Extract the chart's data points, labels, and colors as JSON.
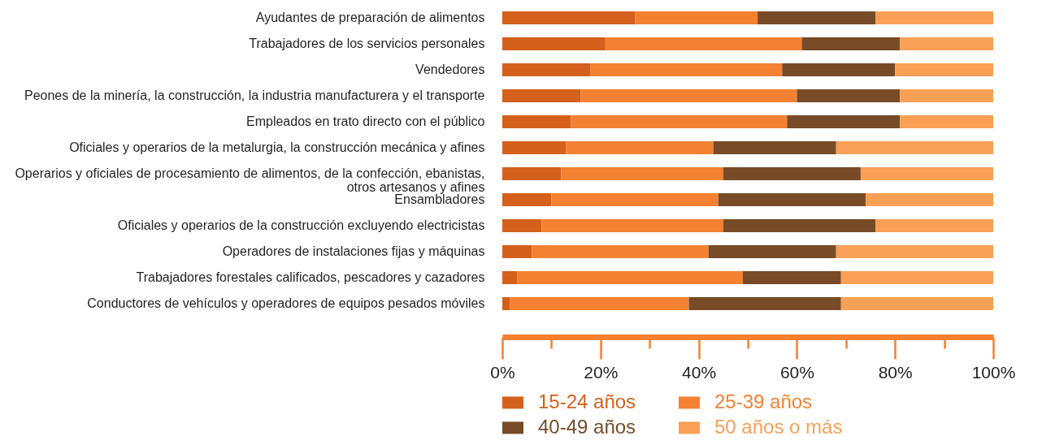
{
  "chart_data": {
    "type": "bar",
    "orientation": "horizontal",
    "stacked": true,
    "categories": [
      "Ayudantes de preparación de alimentos",
      "Trabajadores de los servicios personales",
      "Vendedores",
      "Peones de la minería, la construcción, la industria manufacturera y el transporte",
      "Empleados en trato directo con el público",
      "Oficiales y operarios de la metalurgia, la construcción mecánica y afines",
      "Operarios y oficiales de procesamiento de alimentos, de la confección, ebanistas, otros artesanos y afines",
      "Ensambladores",
      "Oficiales y operarios de la construcción excluyendo electricistas",
      "Operadores de instalaciones fijas y máquinas",
      "Trabajadores forestales calificados, pescadores y cazadores",
      "Conductores de vehículos y operadores de equipos pesados móviles"
    ],
    "series": [
      {
        "name": "15-24 años",
        "color": "#d4601b",
        "values": [
          27,
          21,
          18,
          16,
          14,
          13,
          12,
          10,
          8,
          6,
          3,
          1.5
        ]
      },
      {
        "name": "25-39 años",
        "color": "#f48132",
        "values": [
          25,
          40,
          39,
          44,
          44,
          30,
          33,
          34,
          37,
          36,
          46,
          36.5
        ]
      },
      {
        "name": "40-49 años",
        "color": "#774b27",
        "values": [
          24,
          20,
          23,
          21,
          23,
          25,
          28,
          30,
          31,
          26,
          20,
          31
        ]
      },
      {
        "name": "50 años o más",
        "color": "#f8a055",
        "values": [
          24,
          19,
          20,
          19,
          19,
          32,
          27,
          26,
          24,
          32,
          31,
          31
        ]
      }
    ],
    "xlim": [
      0,
      100
    ],
    "xticks": [
      {
        "value": 0,
        "label": "0%"
      },
      {
        "value": 10,
        "label": null
      },
      {
        "value": 20,
        "label": "20%"
      },
      {
        "value": 30,
        "label": null
      },
      {
        "value": 40,
        "label": "40%"
      },
      {
        "value": 50,
        "label": null
      },
      {
        "value": 60,
        "label": "60%"
      },
      {
        "value": 70,
        "label": null
      },
      {
        "value": 80,
        "label": "80%"
      },
      {
        "value": 90,
        "label": null
      },
      {
        "value": 100,
        "label": "100%"
      }
    ],
    "legend": "bottom"
  }
}
